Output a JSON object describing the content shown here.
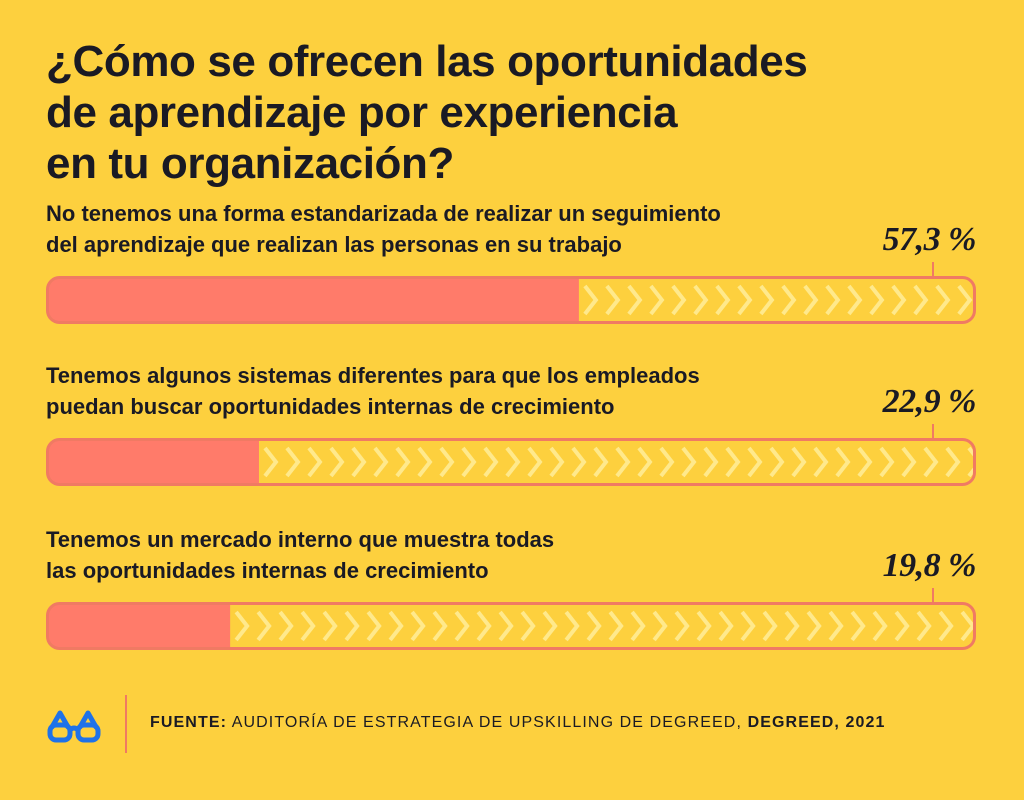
{
  "title": {
    "line1": "¿Cómo se ofrecen las oportunidades",
    "line2": "de aprendizaje por experiencia",
    "line3": "en tu organización?"
  },
  "chart_data": {
    "type": "bar",
    "orientation": "horizontal",
    "xlim": [
      0,
      100
    ],
    "unit": "%",
    "categories": [
      "No tenemos una forma estandarizada de realizar un seguimiento del aprendizaje que realizan las personas en su trabajo",
      "Tenemos algunos sistemas diferentes para que los empleados puedan buscar oportunidades internas de crecimiento",
      "Tenemos un mercado interno que muestra todas las oportunidades internas de crecimiento"
    ],
    "values": [
      57.3,
      22.9,
      19.8
    ],
    "data_labels": [
      "57,3 %",
      "22,9 %",
      "19,8 %"
    ]
  },
  "items": [
    {
      "label_line1": "No tenemos una forma estandarizada de realizar un seguimiento",
      "label_line2": "del aprendizaje que realizan las personas en su trabajo"
    },
    {
      "label_line1": "Tenemos algunos sistemas diferentes para que los empleados",
      "label_line2": "puedan buscar oportunidades internas de crecimiento"
    },
    {
      "label_line1": "Tenemos un mercado interno que muestra todas",
      "label_line2": "las oportunidades internas de crecimiento"
    }
  ],
  "footer": {
    "source_label": "FUENTE:",
    "source_text": " AUDITORÍA DE ESTRATEGIA DE UPSKILLING DE DEGREED",
    "separator": ", ",
    "publisher": "DEGREED, 2021"
  },
  "logo": {
    "icon": "glasses-icon",
    "color": "#1F72E8"
  },
  "colors": {
    "background": "#FDD03E",
    "bar_fill": "#FF7B6A",
    "bar_stroke": "#F07A63",
    "chevron": "#FFE98C",
    "text": "#1A1A24"
  }
}
